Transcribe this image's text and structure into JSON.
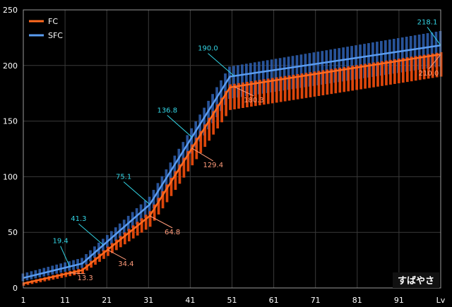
{
  "chart_data": {
    "type": "line",
    "xlim": [
      1,
      100
    ],
    "ylim": [
      0,
      250
    ],
    "x_ticks": [
      "1",
      "11",
      "21",
      "31",
      "41",
      "51",
      "61",
      "71",
      "81",
      "91",
      "Lv"
    ],
    "y_ticks": [
      "0",
      "50",
      "100",
      "150",
      "200",
      "250"
    ],
    "grid": true,
    "legend_position": "top-left",
    "watermark": "すばやさ",
    "colors": {
      "FC": "#ff6a1f",
      "FC_band": "#e84a0c",
      "SFC": "#5a9cf0",
      "SFC_band": "#2f62b4",
      "FC_label": "#ff9b7a",
      "SFC_label": "#33d6e6",
      "grid": "#3a3a3a",
      "frame": "#9a9a9a"
    },
    "series": [
      {
        "name": "FC",
        "x": [
          1,
          15,
          31,
          50,
          100
        ],
        "y": [
          4,
          16,
          64.8,
          180.3,
          210
        ],
        "band": [
          [
            1,
            2,
            5
          ],
          [
            15,
            13,
            18
          ],
          [
            31,
            55,
            69
          ],
          [
            50,
            160,
            183
          ],
          [
            100,
            190,
            212
          ]
        ]
      },
      {
        "name": "SFC",
        "x": [
          1,
          15,
          31,
          50,
          100
        ],
        "y": [
          9,
          22,
          75.1,
          190,
          218.1
        ],
        "band": [
          [
            1,
            6,
            13
          ],
          [
            15,
            18,
            27
          ],
          [
            31,
            66,
            82
          ],
          [
            50,
            170,
            199
          ],
          [
            100,
            199,
            231
          ]
        ]
      }
    ],
    "annotations": [
      {
        "series": "SFC",
        "text": "19.4",
        "x": 12,
        "y": 19.4
      },
      {
        "series": "FC",
        "text": "13.3",
        "x": 12,
        "y": 13.3
      },
      {
        "series": "SFC",
        "text": "41.3",
        "x": 20,
        "y": 41.3
      },
      {
        "series": "FC",
        "text": "34.4",
        "x": 21,
        "y": 34.4
      },
      {
        "series": "SFC",
        "text": "75.1",
        "x": 31,
        "y": 75.1
      },
      {
        "series": "FC",
        "text": "64.8",
        "x": 31,
        "y": 64.8
      },
      {
        "series": "SFC",
        "text": "136.8",
        "x": 41,
        "y": 136.8
      },
      {
        "series": "FC",
        "text": "129.4",
        "x": 41,
        "y": 129.4
      },
      {
        "series": "SFC",
        "text": "190.0",
        "x": 51,
        "y": 190.0
      },
      {
        "series": "FC",
        "text": "180.3",
        "x": 51,
        "y": 180.3
      },
      {
        "series": "SFC",
        "text": "218.1",
        "x": 100,
        "y": 218.1
      },
      {
        "series": "FC",
        "text": "210.0",
        "x": 100,
        "y": 210.0
      }
    ]
  }
}
